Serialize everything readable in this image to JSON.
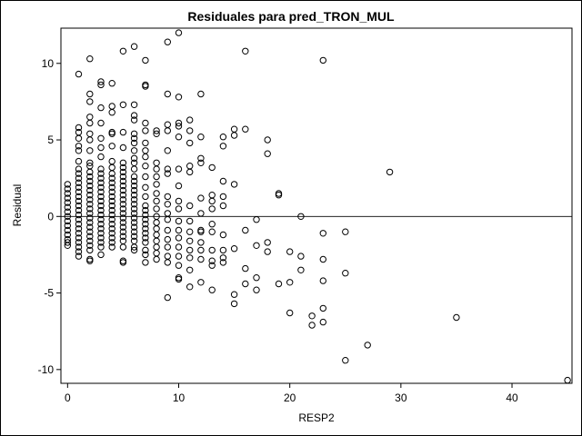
{
  "chart_data": {
    "type": "scatter",
    "title": "Residuales para pred_TRON_MUL",
    "xlabel": "RESP2",
    "ylabel": "Residual",
    "xlim": [
      -0.6,
      45.4
    ],
    "ylim": [
      -10.9,
      12.3
    ],
    "xticks": [
      0,
      10,
      20,
      30,
      40
    ],
    "yticks": [
      -10,
      -5,
      0,
      5,
      10
    ],
    "reference_line": 0,
    "grid": false,
    "marker": "open-circle",
    "points": [
      [
        0,
        2.1
      ],
      [
        0,
        1.8
      ],
      [
        0,
        1.5
      ],
      [
        0,
        1.2
      ],
      [
        0,
        0.9
      ],
      [
        0,
        0.6
      ],
      [
        0,
        0.3
      ],
      [
        0,
        0
      ],
      [
        0,
        -0.3
      ],
      [
        0,
        -0.6
      ],
      [
        0,
        -0.9
      ],
      [
        0,
        -1.2
      ],
      [
        0,
        -1.5
      ],
      [
        0,
        -1.7
      ],
      [
        0,
        -1.9
      ],
      [
        1,
        9.3
      ],
      [
        1,
        5.8
      ],
      [
        1,
        5.5
      ],
      [
        1,
        5.1
      ],
      [
        1,
        4.6
      ],
      [
        1,
        4.3
      ],
      [
        1,
        3.6
      ],
      [
        1,
        3.1
      ],
      [
        1,
        2.8
      ],
      [
        1,
        2.5
      ],
      [
        1,
        2.2
      ],
      [
        1,
        1.9
      ],
      [
        1,
        1.6
      ],
      [
        1,
        1.3
      ],
      [
        1,
        1
      ],
      [
        1,
        0.7
      ],
      [
        1,
        0.4
      ],
      [
        1,
        0.1
      ],
      [
        1,
        -0.2
      ],
      [
        1,
        -0.5
      ],
      [
        1,
        -0.8
      ],
      [
        1,
        -1.1
      ],
      [
        1,
        -1.4
      ],
      [
        1,
        -1.7
      ],
      [
        1,
        -2
      ],
      [
        1,
        -2.3
      ],
      [
        1,
        -2.6
      ],
      [
        2,
        10.3
      ],
      [
        2,
        8
      ],
      [
        2,
        7.5
      ],
      [
        2,
        6.5
      ],
      [
        2,
        6.1
      ],
      [
        2,
        5.4
      ],
      [
        2,
        5
      ],
      [
        2,
        4.3
      ],
      [
        2,
        3.5
      ],
      [
        2,
        3.3
      ],
      [
        2,
        2.9
      ],
      [
        2,
        2.6
      ],
      [
        2,
        2.3
      ],
      [
        2,
        2
      ],
      [
        2,
        1.7
      ],
      [
        2,
        1.4
      ],
      [
        2,
        1.1
      ],
      [
        2,
        0.8
      ],
      [
        2,
        0.5
      ],
      [
        2,
        0.2
      ],
      [
        2,
        -0.1
      ],
      [
        2,
        -0.4
      ],
      [
        2,
        -0.7
      ],
      [
        2,
        -1
      ],
      [
        2,
        -1.3
      ],
      [
        2,
        -1.6
      ],
      [
        2,
        -1.9
      ],
      [
        2,
        -2.2
      ],
      [
        2,
        -2.8
      ],
      [
        2,
        -2.9
      ],
      [
        3,
        8.8
      ],
      [
        3,
        8.6
      ],
      [
        3,
        7.1
      ],
      [
        3,
        6.1
      ],
      [
        3,
        5.1
      ],
      [
        3,
        4.5
      ],
      [
        3,
        3.9
      ],
      [
        3,
        3.1
      ],
      [
        3,
        2.8
      ],
      [
        3,
        2.5
      ],
      [
        3,
        2.2
      ],
      [
        3,
        1.9
      ],
      [
        3,
        1.6
      ],
      [
        3,
        1.3
      ],
      [
        3,
        1
      ],
      [
        3,
        0.7
      ],
      [
        3,
        0.4
      ],
      [
        3,
        0.1
      ],
      [
        3,
        -0.2
      ],
      [
        3,
        -0.5
      ],
      [
        3,
        -0.8
      ],
      [
        3,
        -1.1
      ],
      [
        3,
        -1.4
      ],
      [
        3,
        -1.7
      ],
      [
        3,
        -2
      ],
      [
        3,
        -2.5
      ],
      [
        4,
        8.7
      ],
      [
        4,
        7.2
      ],
      [
        4,
        6.8
      ],
      [
        4,
        5.5
      ],
      [
        4,
        5.4
      ],
      [
        4,
        4.6
      ],
      [
        4,
        3.6
      ],
      [
        4,
        3.2
      ],
      [
        4,
        2.8
      ],
      [
        4,
        2.5
      ],
      [
        4,
        2.2
      ],
      [
        4,
        1.9
      ],
      [
        4,
        1.6
      ],
      [
        4,
        1.3
      ],
      [
        4,
        1
      ],
      [
        4,
        0.7
      ],
      [
        4,
        0.4
      ],
      [
        4,
        0.1
      ],
      [
        4,
        -0.2
      ],
      [
        4,
        -0.5
      ],
      [
        4,
        -0.8
      ],
      [
        4,
        -1.1
      ],
      [
        4,
        -1.4
      ],
      [
        4,
        -1.7
      ],
      [
        4,
        -2
      ],
      [
        5,
        10.8
      ],
      [
        5,
        7.3
      ],
      [
        5,
        5.5
      ],
      [
        5,
        4.5
      ],
      [
        5,
        3.5
      ],
      [
        5,
        3.2
      ],
      [
        5,
        2.9
      ],
      [
        5,
        2.6
      ],
      [
        5,
        2.3
      ],
      [
        5,
        2
      ],
      [
        5,
        1.7
      ],
      [
        5,
        1.4
      ],
      [
        5,
        1.1
      ],
      [
        5,
        0.8
      ],
      [
        5,
        0.5
      ],
      [
        5,
        0.2
      ],
      [
        5,
        -0.1
      ],
      [
        5,
        -0.4
      ],
      [
        5,
        -0.7
      ],
      [
        5,
        -1
      ],
      [
        5,
        -1.3
      ],
      [
        5,
        -1.6
      ],
      [
        5,
        -2
      ],
      [
        5,
        -2.9
      ],
      [
        5,
        -3
      ],
      [
        6,
        11.1
      ],
      [
        6,
        7.3
      ],
      [
        6,
        6.6
      ],
      [
        6,
        6.3
      ],
      [
        6,
        5.4
      ],
      [
        6,
        5.1
      ],
      [
        6,
        4.8
      ],
      [
        6,
        4.3
      ],
      [
        6,
        3.8
      ],
      [
        6,
        3.5
      ],
      [
        6,
        3.1
      ],
      [
        6,
        2.6
      ],
      [
        6,
        2.3
      ],
      [
        6,
        2
      ],
      [
        6,
        1.7
      ],
      [
        6,
        1.4
      ],
      [
        6,
        1.1
      ],
      [
        6,
        0.8
      ],
      [
        6,
        0.5
      ],
      [
        6,
        0.2
      ],
      [
        6,
        -0.1
      ],
      [
        6,
        -0.4
      ],
      [
        6,
        -0.7
      ],
      [
        6,
        -1
      ],
      [
        6,
        -1.3
      ],
      [
        6,
        -1.6
      ],
      [
        6,
        -2
      ],
      [
        6,
        -2.2
      ],
      [
        7,
        10.2
      ],
      [
        7,
        8.6
      ],
      [
        7,
        8.5
      ],
      [
        7,
        6.1
      ],
      [
        7,
        5.6
      ],
      [
        7,
        4.8
      ],
      [
        7,
        4.3
      ],
      [
        7,
        3.9
      ],
      [
        7,
        3.3
      ],
      [
        7,
        2.6
      ],
      [
        7,
        1.9
      ],
      [
        7,
        1.3
      ],
      [
        7,
        0.7
      ],
      [
        7,
        0.4
      ],
      [
        7,
        0.1
      ],
      [
        7,
        -0.2
      ],
      [
        7,
        -0.5
      ],
      [
        7,
        -0.8
      ],
      [
        7,
        -1.1
      ],
      [
        7,
        -1.4
      ],
      [
        7,
        -1.7
      ],
      [
        7,
        -2.2
      ],
      [
        7,
        -2.5
      ],
      [
        7,
        -3
      ],
      [
        8,
        5.6
      ],
      [
        8,
        5.4
      ],
      [
        8,
        3.5
      ],
      [
        8,
        3.1
      ],
      [
        8,
        2.6
      ],
      [
        8,
        2.1
      ],
      [
        8,
        1.5
      ],
      [
        8,
        1
      ],
      [
        8,
        0.5
      ],
      [
        8,
        0
      ],
      [
        8,
        -0.4
      ],
      [
        8,
        -0.8
      ],
      [
        8,
        -1.2
      ],
      [
        8,
        -1.6
      ],
      [
        8,
        -2
      ],
      [
        8,
        -2.4
      ],
      [
        8,
        -2.8
      ],
      [
        9,
        11.4
      ],
      [
        9,
        8
      ],
      [
        9,
        6
      ],
      [
        9,
        5.6
      ],
      [
        9,
        4.3
      ],
      [
        9,
        3.1
      ],
      [
        9,
        2.8
      ],
      [
        9,
        1.3
      ],
      [
        9,
        0.8
      ],
      [
        9,
        0.2
      ],
      [
        9,
        -0.2
      ],
      [
        9,
        -0.9
      ],
      [
        9,
        -1.5
      ],
      [
        9,
        -2
      ],
      [
        9,
        -2.6
      ],
      [
        9,
        -3
      ],
      [
        9,
        -5.3
      ],
      [
        10,
        12
      ],
      [
        10,
        7.8
      ],
      [
        10,
        6.1
      ],
      [
        10,
        5.9
      ],
      [
        10,
        5.2
      ],
      [
        10,
        3.1
      ],
      [
        10,
        2
      ],
      [
        10,
        1
      ],
      [
        10,
        0.5
      ],
      [
        10,
        -0.3
      ],
      [
        10,
        -0.9
      ],
      [
        10,
        -1.4
      ],
      [
        10,
        -2
      ],
      [
        10,
        -2.6
      ],
      [
        10,
        -3.2
      ],
      [
        10,
        -4
      ],
      [
        10,
        -4.1
      ],
      [
        11,
        6.3
      ],
      [
        11,
        5.6
      ],
      [
        11,
        4.8
      ],
      [
        11,
        3.3
      ],
      [
        11,
        2.9
      ],
      [
        11,
        0.7
      ],
      [
        11,
        -0.3
      ],
      [
        11,
        -1
      ],
      [
        11,
        -1.6
      ],
      [
        11,
        -2.2
      ],
      [
        11,
        -2.7
      ],
      [
        11,
        -3.5
      ],
      [
        11,
        -4.6
      ],
      [
        12,
        8
      ],
      [
        12,
        5.2
      ],
      [
        12,
        3.8
      ],
      [
        12,
        3.5
      ],
      [
        12,
        1.2
      ],
      [
        12,
        0.2
      ],
      [
        12,
        -0.9
      ],
      [
        12,
        -1
      ],
      [
        12,
        -1.7
      ],
      [
        12,
        -2.2
      ],
      [
        12,
        -2.8
      ],
      [
        12,
        -4.3
      ],
      [
        13,
        3.2
      ],
      [
        13,
        1.4
      ],
      [
        13,
        1
      ],
      [
        13,
        0.5
      ],
      [
        13,
        -0.5
      ],
      [
        13,
        -1
      ],
      [
        13,
        -2.2
      ],
      [
        13,
        -2.9
      ],
      [
        13,
        -3.2
      ],
      [
        13,
        -4.8
      ],
      [
        14,
        5.2
      ],
      [
        14,
        4.6
      ],
      [
        14,
        2.3
      ],
      [
        14,
        1.3
      ],
      [
        14,
        0.7
      ],
      [
        14,
        -1.2
      ],
      [
        14,
        -2.2
      ],
      [
        14,
        -2.7
      ],
      [
        14,
        -3
      ],
      [
        15,
        5.7
      ],
      [
        15,
        5.3
      ],
      [
        15,
        2.1
      ],
      [
        15,
        -2.1
      ],
      [
        15,
        -5.1
      ],
      [
        15,
        -5.7
      ],
      [
        16,
        10.8
      ],
      [
        16,
        5.7
      ],
      [
        16,
        -0.9
      ],
      [
        16,
        -3.4
      ],
      [
        16,
        -4.4
      ],
      [
        17,
        -0.2
      ],
      [
        17,
        -1.9
      ],
      [
        17,
        -4
      ],
      [
        17,
        -4.8
      ],
      [
        18,
        5
      ],
      [
        18,
        4.1
      ],
      [
        18,
        -1.7
      ],
      [
        18,
        -2.3
      ],
      [
        19,
        1.5
      ],
      [
        19,
        1.4
      ],
      [
        19,
        -4.4
      ],
      [
        20,
        -2.3
      ],
      [
        20,
        -4.3
      ],
      [
        20,
        -6.3
      ],
      [
        21,
        0
      ],
      [
        21,
        -2.6
      ],
      [
        21,
        -3.5
      ],
      [
        22,
        -6.5
      ],
      [
        22,
        -7.1
      ],
      [
        23,
        10.2
      ],
      [
        23,
        -1.1
      ],
      [
        23,
        -2.8
      ],
      [
        23,
        -4.2
      ],
      [
        23,
        -6
      ],
      [
        23,
        -6.9
      ],
      [
        25,
        -1
      ],
      [
        25,
        -3.7
      ],
      [
        25,
        -9.4
      ],
      [
        27,
        -8.4
      ],
      [
        29,
        2.9
      ],
      [
        35,
        -6.6
      ],
      [
        45,
        -10.7
      ]
    ]
  }
}
